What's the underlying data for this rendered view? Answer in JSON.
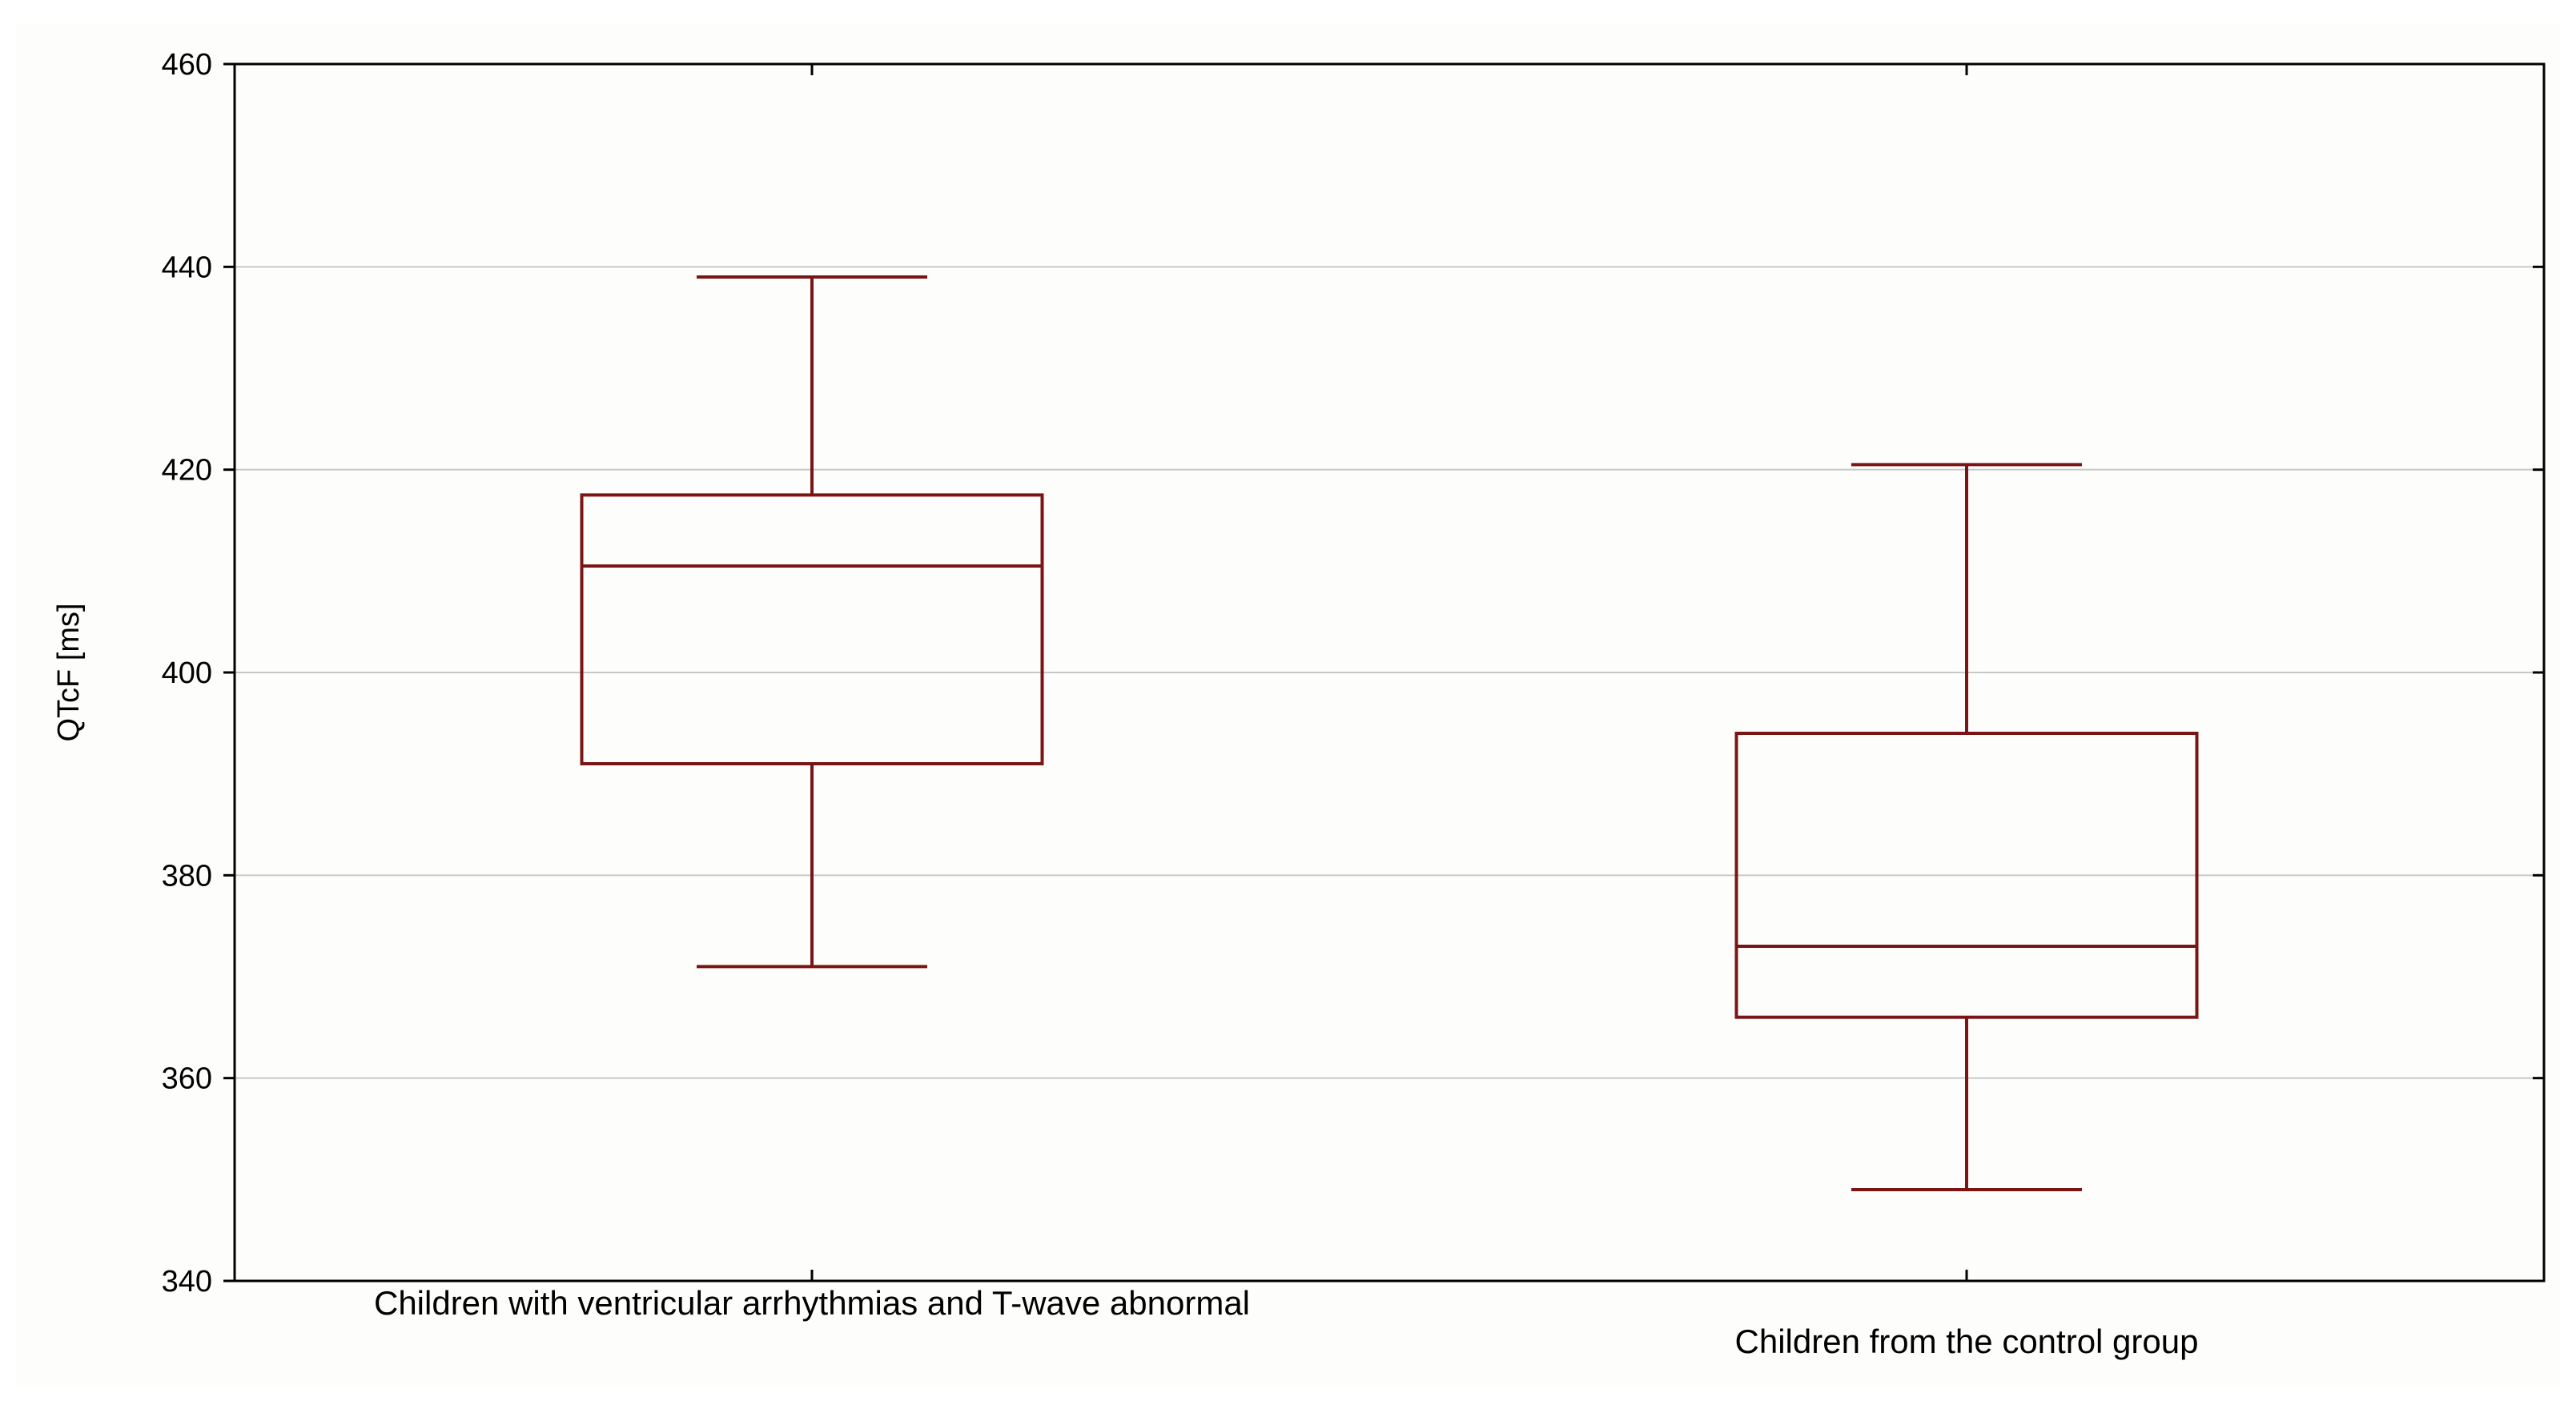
{
  "chart_data": {
    "type": "boxplot",
    "title": "",
    "xlabel": "",
    "ylabel": "QTcF [ms]",
    "ylim": [
      340,
      460
    ],
    "yticks": [
      340,
      360,
      380,
      400,
      420,
      440,
      460
    ],
    "grid": true,
    "box_color": "#7a1515",
    "categories": [
      "Children with ventricular arrhythmias and T-wave abnormal",
      "Children from the control group"
    ],
    "series": [
      {
        "values": [
          {
            "whisker_low": 371,
            "q1": 391,
            "median": 410.5,
            "q3": 417.5,
            "whisker_high": 439
          },
          {
            "whisker_low": 349,
            "q1": 366,
            "median": 373,
            "q3": 394,
            "whisker_high": 420.5
          }
        ]
      }
    ]
  }
}
